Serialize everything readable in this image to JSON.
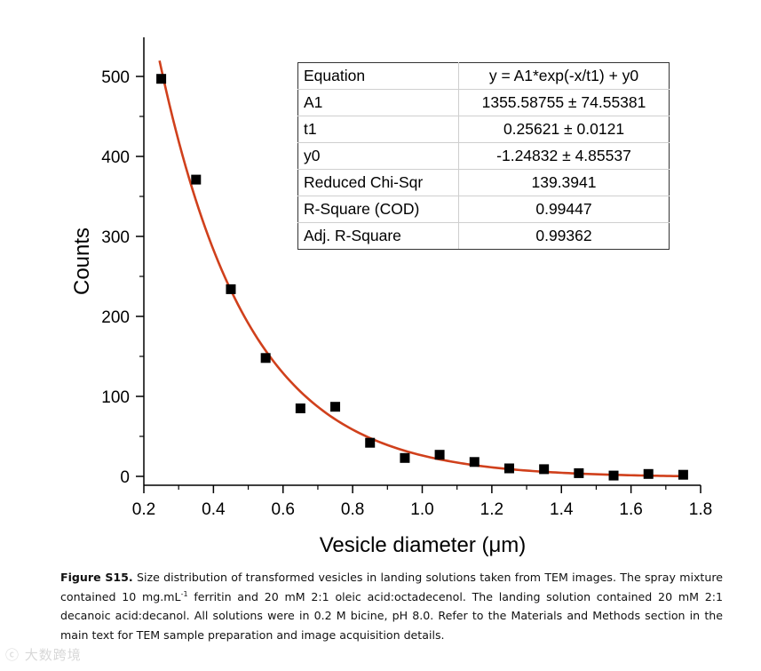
{
  "chart_data": {
    "type": "scatter",
    "title": "",
    "xlabel": "Vesicle diameter (μm)",
    "ylabel": "Counts",
    "xlim": [
      0.2,
      1.8
    ],
    "ylim": [
      -10,
      550
    ],
    "x_ticks": [
      "0.2",
      "0.4",
      "0.6",
      "0.8",
      "1.0",
      "1.2",
      "1.4",
      "1.6",
      "1.8"
    ],
    "y_ticks": [
      "0",
      "100",
      "200",
      "300",
      "400",
      "500"
    ],
    "series": [
      {
        "name": "Counts",
        "marker": "square",
        "color": "#000000",
        "x": [
          0.25,
          0.35,
          0.45,
          0.55,
          0.65,
          0.75,
          0.85,
          0.95,
          1.05,
          1.15,
          1.25,
          1.35,
          1.45,
          1.55,
          1.65,
          1.75
        ],
        "y": [
          497,
          371,
          234,
          148,
          85,
          87,
          42,
          23,
          27,
          18,
          10,
          9,
          4,
          1,
          3,
          2
        ]
      }
    ],
    "fit": {
      "name": "Exponential decay fit",
      "color": "#d0401c",
      "A1": 1355.58755,
      "t1": 0.25621,
      "y0": -1.24832,
      "x_range": [
        0.245,
        1.75
      ]
    }
  },
  "fit_table": [
    {
      "label": "Equation",
      "value": "y = A1*exp(-x/t1) + y0"
    },
    {
      "label": "A1",
      "value": "1355.58755 ± 74.55381"
    },
    {
      "label": "t1",
      "value": "0.25621 ± 0.0121"
    },
    {
      "label": "y0",
      "value": "-1.24832 ± 4.85537"
    },
    {
      "label": "Reduced Chi-Sqr",
      "value": "139.3941"
    },
    {
      "label": "R-Square (COD)",
      "value": "0.99447"
    },
    {
      "label": "Adj. R-Square",
      "value": "0.99362"
    }
  ],
  "caption": {
    "label": "Figure S15.",
    "part1": " Size distribution of transformed vesicles in landing solutions taken from TEM images. The spray mixture contained 10 mg.mL",
    "superscript": "-1",
    "part2": " ferritin and 20 mM 2:1 oleic acid:octadecenol. The landing solution contained 20 mM 2:1 decanoic acid:decanol. All solutions were in 0.2 M bicine, pH 8.0. Refer to the Materials and Methods section in the main text for TEM sample preparation and image acquisition details."
  },
  "watermark": "大数跨境"
}
